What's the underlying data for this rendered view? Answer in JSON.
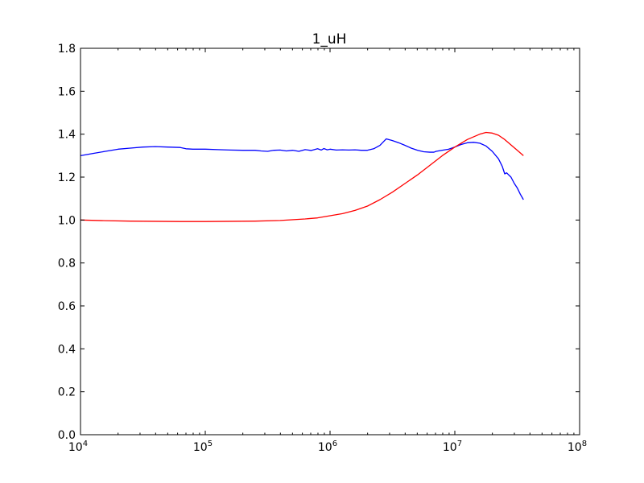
{
  "chart_data": {
    "type": "line",
    "title": "1_uH",
    "xlabel": "",
    "ylabel": "",
    "xscale": "log",
    "xlim": [
      10000,
      100000000
    ],
    "ylim": [
      0.0,
      1.8
    ],
    "grid": false,
    "legend": "none",
    "x_ticks": [
      {
        "value": 10000,
        "base": "10",
        "exp": "4"
      },
      {
        "value": 100000,
        "base": "10",
        "exp": "5"
      },
      {
        "value": 1000000,
        "base": "10",
        "exp": "6"
      },
      {
        "value": 10000000,
        "base": "10",
        "exp": "7"
      },
      {
        "value": 100000000,
        "base": "10",
        "exp": "8"
      }
    ],
    "y_ticks": [
      {
        "value": 0.0,
        "label": "0.0"
      },
      {
        "value": 0.2,
        "label": "0.2"
      },
      {
        "value": 0.4,
        "label": "0.4"
      },
      {
        "value": 0.6,
        "label": "0.6"
      },
      {
        "value": 0.8,
        "label": "0.8"
      },
      {
        "value": 1.0,
        "label": "1.0"
      },
      {
        "value": 1.2,
        "label": "1.2"
      },
      {
        "value": 1.4,
        "label": "1.4"
      },
      {
        "value": 1.6,
        "label": "1.6"
      },
      {
        "value": 1.8,
        "label": "1.8"
      }
    ],
    "series": [
      {
        "color": "#0000ff",
        "points": [
          [
            10000,
            1.3
          ],
          [
            12600,
            1.31
          ],
          [
            15800,
            1.32
          ],
          [
            20000,
            1.33
          ],
          [
            25100,
            1.335
          ],
          [
            31600,
            1.34
          ],
          [
            39800,
            1.342
          ],
          [
            50100,
            1.34
          ],
          [
            63100,
            1.338
          ],
          [
            70000,
            1.332
          ],
          [
            79400,
            1.33
          ],
          [
            100000,
            1.33
          ],
          [
            125900,
            1.328
          ],
          [
            158500,
            1.326
          ],
          [
            199500,
            1.325
          ],
          [
            251200,
            1.325
          ],
          [
            280000,
            1.322
          ],
          [
            316200,
            1.32
          ],
          [
            354800,
            1.325
          ],
          [
            398100,
            1.326
          ],
          [
            446700,
            1.322
          ],
          [
            501200,
            1.325
          ],
          [
            562300,
            1.32
          ],
          [
            631000,
            1.328
          ],
          [
            707900,
            1.324
          ],
          [
            794300,
            1.332
          ],
          [
            850000,
            1.326
          ],
          [
            891300,
            1.333
          ],
          [
            950000,
            1.327
          ],
          [
            1000000,
            1.33
          ],
          [
            1122000,
            1.326
          ],
          [
            1259000,
            1.327
          ],
          [
            1413000,
            1.326
          ],
          [
            1585000,
            1.327
          ],
          [
            1778000,
            1.325
          ],
          [
            1995000,
            1.325
          ],
          [
            2239000,
            1.332
          ],
          [
            2512000,
            1.348
          ],
          [
            2818000,
            1.378
          ],
          [
            3162000,
            1.37
          ],
          [
            3548000,
            1.36
          ],
          [
            3981000,
            1.348
          ],
          [
            4467000,
            1.335
          ],
          [
            5012000,
            1.325
          ],
          [
            5623000,
            1.318
          ],
          [
            6310000,
            1.316
          ],
          [
            6800000,
            1.316
          ],
          [
            7079000,
            1.32
          ],
          [
            7943000,
            1.325
          ],
          [
            8913000,
            1.33
          ],
          [
            10000000,
            1.34
          ],
          [
            11220000,
            1.352
          ],
          [
            12590000,
            1.36
          ],
          [
            14130000,
            1.362
          ],
          [
            15850000,
            1.358
          ],
          [
            17780000,
            1.345
          ],
          [
            19950000,
            1.32
          ],
          [
            22390000,
            1.285
          ],
          [
            24000000,
            1.25
          ],
          [
            25120000,
            1.215
          ],
          [
            26000000,
            1.22
          ],
          [
            28180000,
            1.2
          ],
          [
            30000000,
            1.17
          ],
          [
            31620000,
            1.15
          ],
          [
            33500000,
            1.12
          ],
          [
            35480000,
            1.095
          ]
        ]
      },
      {
        "color": "#ff0000",
        "points": [
          [
            10000,
            1.0
          ],
          [
            15800,
            0.997
          ],
          [
            25100,
            0.995
          ],
          [
            39800,
            0.994
          ],
          [
            63100,
            0.993
          ],
          [
            100000,
            0.993
          ],
          [
            158500,
            0.994
          ],
          [
            251200,
            0.995
          ],
          [
            398100,
            0.998
          ],
          [
            631000,
            1.005
          ],
          [
            794300,
            1.01
          ],
          [
            1000000,
            1.02
          ],
          [
            1259000,
            1.03
          ],
          [
            1585000,
            1.045
          ],
          [
            1995000,
            1.065
          ],
          [
            2512000,
            1.095
          ],
          [
            3162000,
            1.13
          ],
          [
            3981000,
            1.17
          ],
          [
            5012000,
            1.21
          ],
          [
            6310000,
            1.255
          ],
          [
            7943000,
            1.3
          ],
          [
            10000000,
            1.34
          ],
          [
            12590000,
            1.375
          ],
          [
            15850000,
            1.4
          ],
          [
            17780000,
            1.408
          ],
          [
            19950000,
            1.405
          ],
          [
            22390000,
            1.395
          ],
          [
            25120000,
            1.375
          ],
          [
            28180000,
            1.35
          ],
          [
            31620000,
            1.325
          ],
          [
            35480000,
            1.3
          ]
        ]
      }
    ]
  }
}
